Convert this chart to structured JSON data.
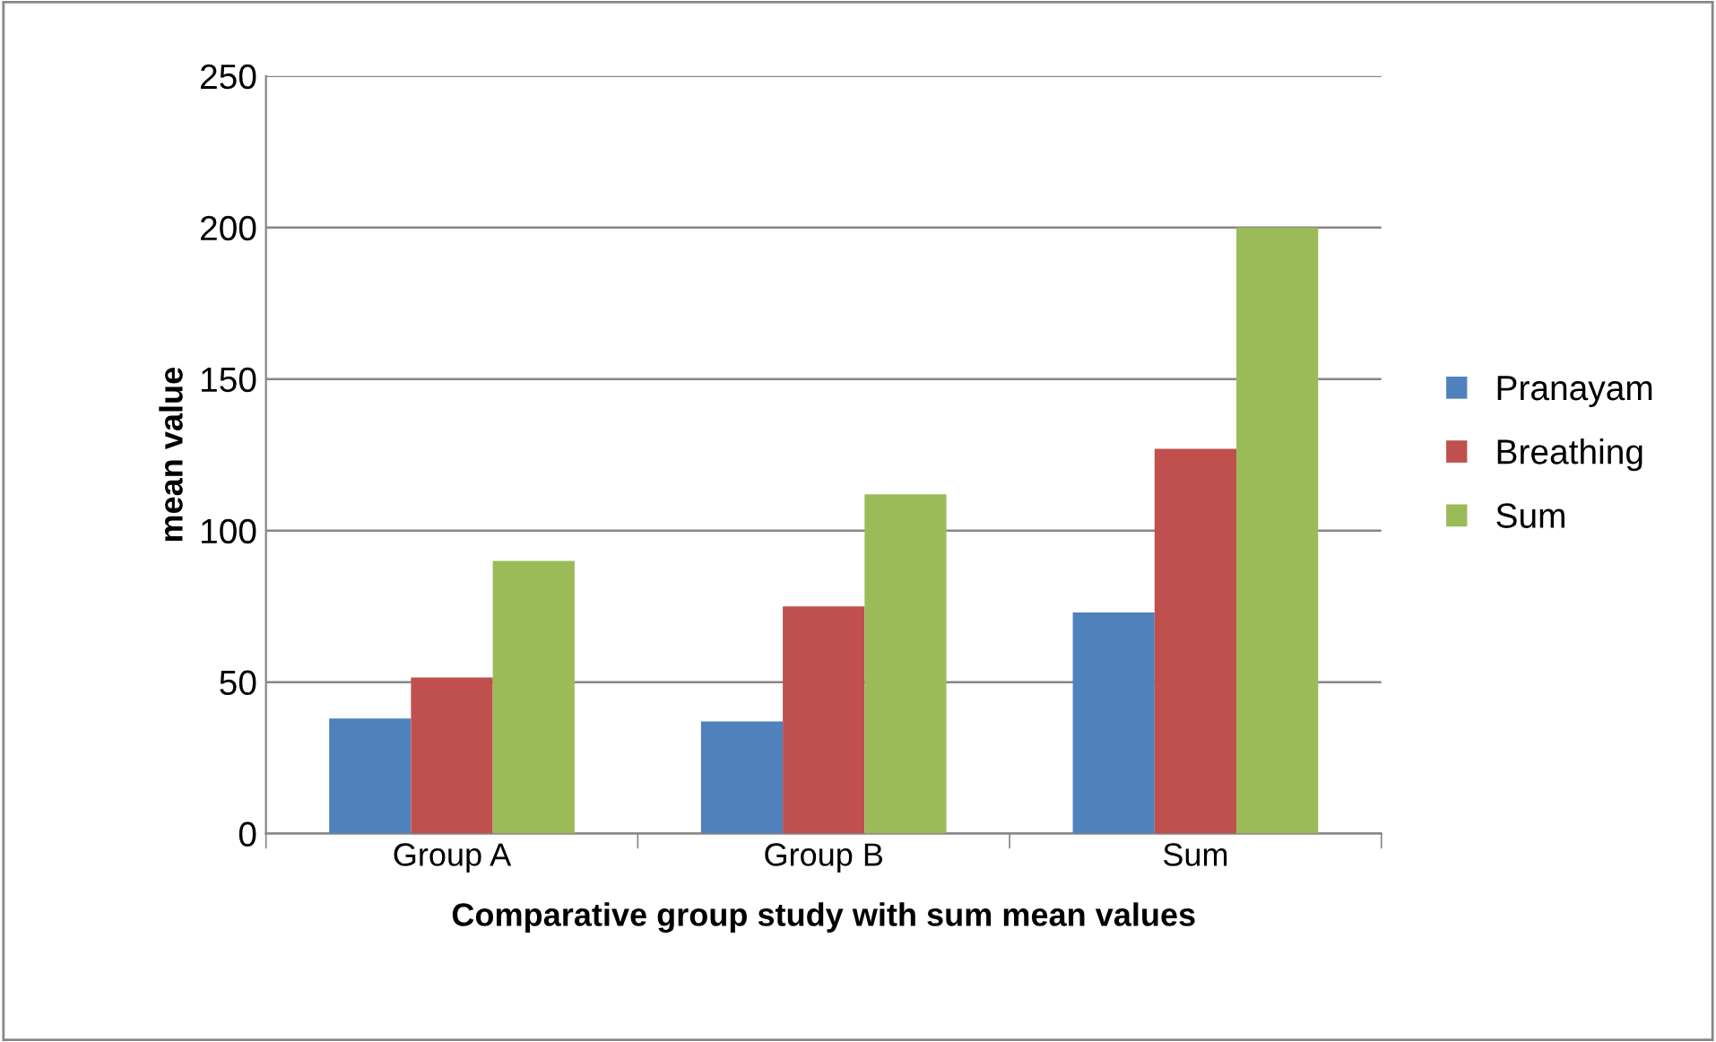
{
  "chart_data": {
    "type": "bar",
    "xlabel": "Comparative group study with sum mean values",
    "ylabel": "mean value",
    "categories": [
      "Group A",
      "Group B",
      "Sum"
    ],
    "series": [
      {
        "name": "Pranayam",
        "color": "#4f81bd",
        "values": [
          38,
          37,
          73
        ]
      },
      {
        "name": "Breathing",
        "color": "#c0504d",
        "values": [
          51.5,
          75,
          127
        ]
      },
      {
        "name": "Sum",
        "color": "#9bbb59",
        "values": [
          90,
          112,
          200
        ]
      }
    ],
    "ylim": [
      0,
      250
    ],
    "yticks": [
      0,
      50,
      100,
      150,
      200,
      250
    ],
    "grid": "y",
    "legend": "right"
  }
}
